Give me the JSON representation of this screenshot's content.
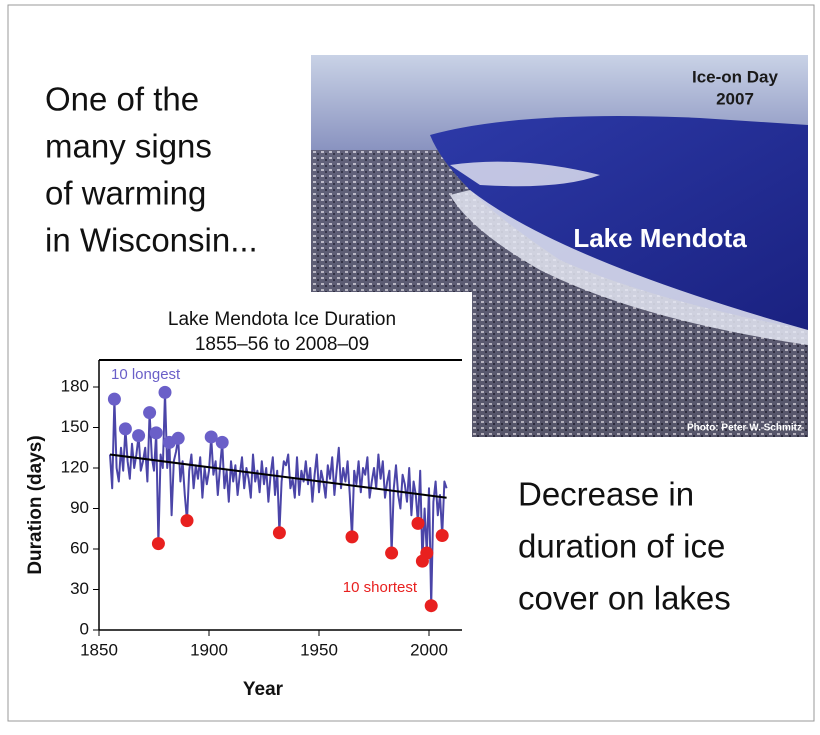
{
  "slide": {
    "left_text": [
      "One of the",
      "many signs",
      "of warming",
      "in Wisconsin..."
    ],
    "right_text": [
      "Decrease in",
      "duration of ice",
      "cover on lakes"
    ],
    "photo": {
      "caption_top": [
        "Ice-on Day",
        "2007"
      ],
      "label": "Lake Mendota",
      "credit": "Photo: Peter W. Schmitz"
    }
  },
  "chart_data": {
    "type": "line",
    "title": "Lake Mendota Ice Duration",
    "subtitle": "1855–56 to 2008–09",
    "x_label": "Year",
    "y_label": "Duration (days)",
    "xlim": [
      1850,
      2015
    ],
    "xticks": [
      1850,
      1900,
      1950,
      2000
    ],
    "ylim": [
      0,
      200
    ],
    "yticks": [
      0,
      30,
      60,
      90,
      120,
      150,
      180
    ],
    "x": [
      1855,
      1856,
      1857,
      1858,
      1859,
      1860,
      1861,
      1862,
      1863,
      1864,
      1865,
      1866,
      1867,
      1868,
      1869,
      1870,
      1871,
      1872,
      1873,
      1874,
      1875,
      1876,
      1877,
      1878,
      1879,
      1880,
      1881,
      1882,
      1883,
      1884,
      1885,
      1886,
      1887,
      1888,
      1889,
      1890,
      1891,
      1892,
      1893,
      1894,
      1895,
      1896,
      1897,
      1898,
      1899,
      1900,
      1901,
      1902,
      1903,
      1904,
      1905,
      1906,
      1907,
      1908,
      1909,
      1910,
      1911,
      1912,
      1913,
      1914,
      1915,
      1916,
      1917,
      1918,
      1919,
      1920,
      1921,
      1922,
      1923,
      1924,
      1925,
      1926,
      1927,
      1928,
      1929,
      1930,
      1931,
      1932,
      1933,
      1934,
      1935,
      1936,
      1937,
      1938,
      1939,
      1940,
      1941,
      1942,
      1943,
      1944,
      1945,
      1946,
      1947,
      1948,
      1949,
      1950,
      1951,
      1952,
      1953,
      1954,
      1955,
      1956,
      1957,
      1958,
      1959,
      1960,
      1961,
      1962,
      1963,
      1964,
      1965,
      1966,
      1967,
      1968,
      1969,
      1970,
      1971,
      1972,
      1973,
      1974,
      1975,
      1976,
      1977,
      1978,
      1979,
      1980,
      1981,
      1982,
      1983,
      1984,
      1985,
      1986,
      1987,
      1988,
      1989,
      1990,
      1991,
      1992,
      1993,
      1994,
      1995,
      1996,
      1997,
      1998,
      1999,
      2000,
      2001,
      2002,
      2003,
      2004,
      2005,
      2006,
      2007,
      2008
    ],
    "series": [
      {
        "color": "#4b45a8",
        "values": [
          130,
          105,
          171,
          120,
          110,
          135,
          118,
          149,
          125,
          112,
          138,
          120,
          130,
          144,
          118,
          125,
          135,
          110,
          161,
          128,
          118,
          146,
          64,
          130,
          120,
          176,
          120,
          139,
          85,
          125,
          132,
          142,
          110,
          125,
          100,
          81,
          118,
          130,
          105,
          122,
          112,
          128,
          98,
          120,
          108,
          118,
          143,
          115,
          125,
          100,
          120,
          139,
          105,
          118,
          95,
          125,
          110,
          122,
          100,
          115,
          128,
          105,
          120,
          112,
          98,
          130,
          110,
          118,
          102,
          125,
          108,
          120,
          95,
          115,
          128,
          100,
          118,
          72,
          110,
          125,
          122,
          130,
          105,
          112,
          98,
          128,
          100,
          118,
          110,
          125,
          108,
          120,
          95,
          115,
          130,
          102,
          118,
          110,
          98,
          122,
          112,
          128,
          100,
          118,
          135,
          105,
          120,
          110,
          125,
          100,
          69,
          118,
          108,
          125,
          102,
          120,
          115,
          128,
          98,
          110,
          120,
          105,
          130,
          112,
          125,
          98,
          110,
          118,
          57,
          105,
          122,
          100,
          90,
          115,
          108,
          95,
          120,
          85,
          110,
          100,
          79,
          118,
          51,
          90,
          57,
          105,
          18,
          95,
          110,
          85,
          100,
          70,
          110,
          105
        ]
      }
    ],
    "trend": {
      "color": "#000000",
      "x": [
        1855,
        2008
      ],
      "values": [
        130,
        98
      ]
    },
    "highlights": [
      {
        "label": "10 longest",
        "color": "#6a5fc8",
        "x": [
          1857,
          1862,
          1868,
          1873,
          1876,
          1880,
          1882,
          1886,
          1901,
          1906
        ],
        "values": [
          171,
          149,
          144,
          161,
          146,
          176,
          139,
          142,
          143,
          139
        ]
      },
      {
        "label": "10 shortest",
        "color": "#e8201f",
        "x": [
          1877,
          1890,
          1932,
          1965,
          1983,
          1995,
          1997,
          1999,
          2001,
          2006
        ],
        "values": [
          64,
          81,
          72,
          69,
          57,
          79,
          51,
          57,
          18,
          70
        ]
      }
    ]
  }
}
